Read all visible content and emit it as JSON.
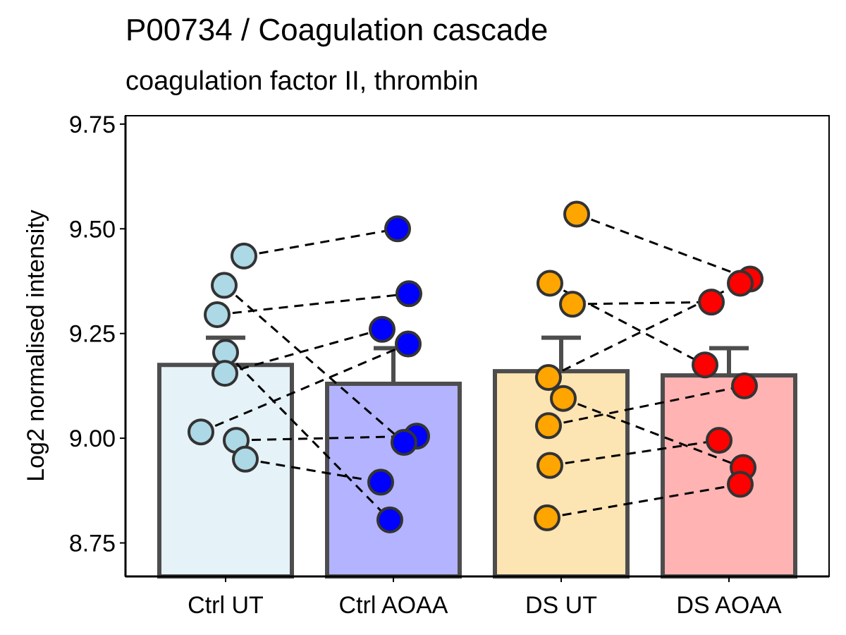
{
  "chart_data": {
    "type": "bar",
    "title": "P00734 / Coagulation cascade",
    "subtitle": "coagulation factor II, thrombin",
    "xlabel": "",
    "ylabel": "Log2 normalised intensity",
    "ylim": [
      8.67,
      9.77
    ],
    "yticks": [
      "8.75",
      "9.00",
      "9.25",
      "9.50",
      "9.75"
    ],
    "categories": [
      "Ctrl UT",
      "Ctrl AOAA",
      "DS UT",
      "DS AOAA"
    ],
    "bars": [
      {
        "category": "Ctrl UT",
        "mean": 9.175,
        "error_upper": 9.24,
        "fill": "#e5f2f8",
        "point_color": "#add8e6"
      },
      {
        "category": "Ctrl AOAA",
        "mean": 9.13,
        "error_upper": 9.215,
        "fill": "#b3b3ff",
        "point_color": "#0000ff"
      },
      {
        "category": "DS UT",
        "mean": 9.16,
        "error_upper": 9.24,
        "fill": "#fde4b3",
        "point_color": "#ffa500"
      },
      {
        "category": "DS AOAA",
        "mean": 9.15,
        "error_upper": 9.215,
        "fill": "#ffb3b3",
        "point_color": "#ff0000"
      }
    ],
    "points": {
      "Ctrl UT": [
        9.435,
        9.365,
        9.295,
        9.205,
        9.155,
        9.015,
        8.995,
        8.95
      ],
      "Ctrl AOAA": [
        9.5,
        9.345,
        9.26,
        9.225,
        9.005,
        8.99,
        8.895,
        8.805
      ],
      "DS UT": [
        9.535,
        9.37,
        9.32,
        9.145,
        9.095,
        9.03,
        8.935,
        8.81
      ],
      "DS AOAA": [
        9.38,
        9.37,
        9.325,
        9.175,
        9.125,
        8.995,
        8.93,
        8.89
      ]
    },
    "pairs": [
      {
        "from": "Ctrl UT",
        "to": "Ctrl AOAA",
        "y1": 9.435,
        "y2": 9.5
      },
      {
        "from": "Ctrl UT",
        "to": "Ctrl AOAA",
        "y1": 9.365,
        "y2": 8.99
      },
      {
        "from": "Ctrl UT",
        "to": "Ctrl AOAA",
        "y1": 9.295,
        "y2": 9.345
      },
      {
        "from": "Ctrl UT",
        "to": "Ctrl AOAA",
        "y1": 9.205,
        "y2": 8.805
      },
      {
        "from": "Ctrl UT",
        "to": "Ctrl AOAA",
        "y1": 9.155,
        "y2": 9.26
      },
      {
        "from": "Ctrl UT",
        "to": "Ctrl AOAA",
        "y1": 9.015,
        "y2": 9.225
      },
      {
        "from": "Ctrl UT",
        "to": "Ctrl AOAA",
        "y1": 8.995,
        "y2": 9.005
      },
      {
        "from": "Ctrl UT",
        "to": "Ctrl AOAA",
        "y1": 8.95,
        "y2": 8.895
      },
      {
        "from": "DS UT",
        "to": "DS AOAA",
        "y1": 9.535,
        "y2": 9.38
      },
      {
        "from": "DS UT",
        "to": "DS AOAA",
        "y1": 9.37,
        "y2": 9.175
      },
      {
        "from": "DS UT",
        "to": "DS AOAA",
        "y1": 9.32,
        "y2": 9.325
      },
      {
        "from": "DS UT",
        "to": "DS AOAA",
        "y1": 9.145,
        "y2": 9.37
      },
      {
        "from": "DS UT",
        "to": "DS AOAA",
        "y1": 9.095,
        "y2": 8.93
      },
      {
        "from": "DS UT",
        "to": "DS AOAA",
        "y1": 9.03,
        "y2": 9.125
      },
      {
        "from": "DS UT",
        "to": "DS AOAA",
        "y1": 8.935,
        "y2": 8.995
      },
      {
        "from": "DS UT",
        "to": "DS AOAA",
        "y1": 8.81,
        "y2": 8.89
      }
    ],
    "grid": false,
    "bar_outline_color": "#4d4d4d",
    "line_color": "#000000"
  }
}
